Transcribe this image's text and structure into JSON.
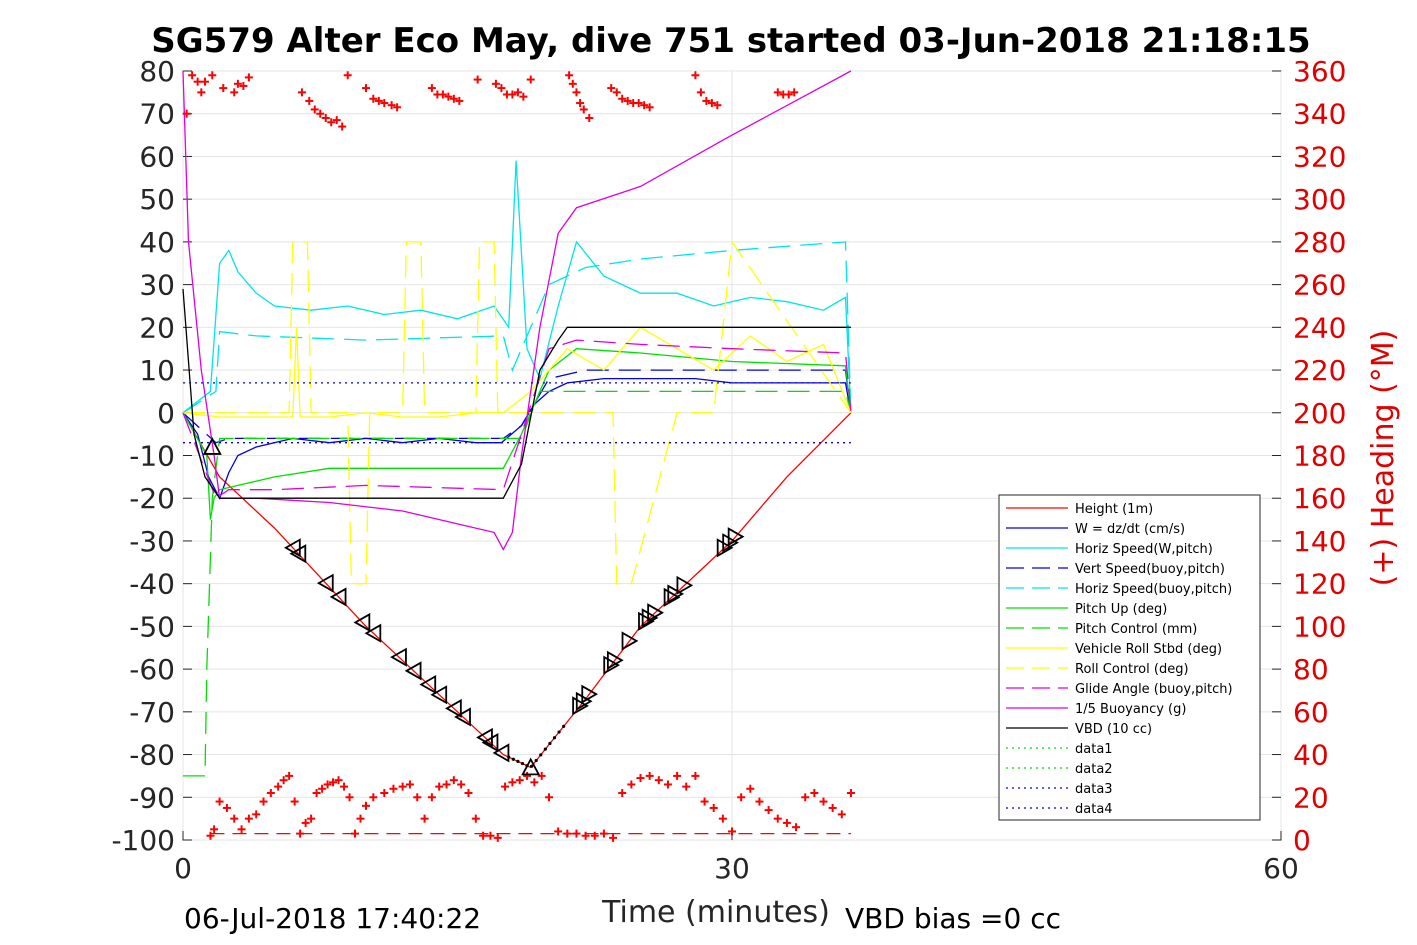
{
  "title": "SG579 Alter Eco May, dive 751 started 03-Jun-2018 21:18:15",
  "footer": {
    "date": "06-Jul-2018 17:40:22",
    "vbd_bias": "VBD bias =0 cc"
  },
  "chart_data": {
    "type": "line",
    "title": "SG579 Alter Eco May, dive 751 started 03-Jun-2018 21:18:15",
    "xlabel": "Time (minutes)",
    "ylabel": "",
    "y2label": "(+) Heading (°M)",
    "xlim": [
      0,
      60
    ],
    "ylim": [
      -100,
      80
    ],
    "y2lim": [
      0,
      360
    ],
    "xticks": [
      "0",
      "30",
      "60"
    ],
    "yticks": [
      "80",
      "70",
      "60",
      "50",
      "40",
      "30",
      "20",
      "10",
      "0",
      "-10",
      "-20",
      "-30",
      "-40",
      "-50",
      "-60",
      "-70",
      "-80",
      "-90",
      "-100"
    ],
    "y2ticks": [
      "360",
      "340",
      "320",
      "300",
      "280",
      "260",
      "240",
      "220",
      "200",
      "180",
      "160",
      "140",
      "120",
      "100",
      "80",
      "60",
      "40",
      "20",
      "0"
    ],
    "grid": true,
    "legend_position": "bottom-right",
    "colors": {
      "heading_axis": "#ff0000",
      "red": "#ff0000",
      "blue": "#0000e0",
      "cyan": "#00e5e5",
      "green": "#00e000",
      "yellow": "#ffff00",
      "magenta": "#e000e0",
      "black": "#000000"
    },
    "series": [
      {
        "name": "Height (1m)",
        "color": "#ff0000",
        "style": "solid",
        "x": [
          0,
          2,
          5,
          10,
          15,
          17.5,
          19,
          22,
          25,
          30,
          33,
          36.5
        ],
        "y": [
          0,
          -15,
          -27,
          -50,
          -70,
          -80,
          -83,
          -67,
          -50,
          -30,
          -15,
          0
        ]
      },
      {
        "name": "W = dz/dt (cm/s)",
        "color": "#0000e0",
        "style": "solid",
        "x": [
          0,
          0.8,
          1.4,
          2,
          2.5,
          3,
          4,
          6,
          8,
          10,
          12,
          14,
          16,
          17.4,
          18.5,
          19.2,
          20,
          21,
          23,
          25,
          28,
          30,
          32,
          34,
          36.2,
          36.5
        ],
        "y": [
          0,
          -5,
          -15,
          -20,
          -14,
          -10,
          -8,
          -6,
          -7,
          -6,
          -7,
          -6,
          -7,
          -7,
          -3,
          2,
          5,
          7,
          8,
          8,
          8,
          7,
          7,
          7,
          7,
          0
        ]
      },
      {
        "name": "Horiz Speed(W,pitch)",
        "color": "#00e5e5",
        "style": "solid",
        "x": [
          0,
          1.5,
          2,
          2.5,
          3,
          4,
          5,
          7,
          9,
          11,
          13,
          15,
          17,
          17.8,
          18.2,
          18.8,
          19.5,
          20.5,
          21.5,
          23,
          25,
          27,
          29,
          31,
          33,
          35,
          36.2,
          36.5
        ],
        "y": [
          0,
          5,
          35,
          38,
          33,
          28,
          25,
          24,
          25,
          23,
          24,
          22,
          25,
          20,
          59,
          15,
          8,
          25,
          40,
          32,
          28,
          28,
          25,
          27,
          26,
          24,
          27,
          0
        ]
      },
      {
        "name": "Vert Speed(buoy,pitch)",
        "color": "#0000e0",
        "style": "dashed",
        "x": [
          0,
          1.8,
          2.5,
          4,
          10,
          17.5,
          18.5,
          20,
          22,
          25,
          30,
          36.2,
          36.5
        ],
        "y": [
          0,
          -7,
          -6,
          -6,
          -6,
          -6,
          -3,
          8,
          10,
          10,
          10,
          10,
          0
        ]
      },
      {
        "name": "Horiz Speed(buoy,pitch)",
        "color": "#00e5e5",
        "style": "dashed",
        "x": [
          0,
          1.8,
          2,
          4,
          10,
          17.5,
          18,
          20,
          22,
          25,
          30,
          36.2,
          36.5
        ],
        "y": [
          0,
          5,
          19,
          18,
          17,
          18,
          10,
          30,
          34,
          36,
          38,
          40,
          0
        ]
      },
      {
        "name": "Pitch Up (deg)",
        "color": "#00e000",
        "style": "solid",
        "x": [
          0,
          1.3,
          1.5,
          1.7,
          2,
          3,
          5,
          8,
          12,
          17.5,
          18.5,
          20,
          21.5,
          25,
          30,
          36.2,
          36.5
        ],
        "y": [
          0,
          -10,
          -25,
          -20,
          -18,
          -17,
          -15,
          -13,
          -13,
          -13,
          -5,
          10,
          15,
          14,
          12,
          11,
          0
        ]
      },
      {
        "name": "Pitch Control (mm)",
        "color": "#00e000",
        "style": "dashed",
        "x": [
          0,
          1.2,
          1.3,
          1.6,
          2,
          8,
          17.5,
          18.5,
          19.5,
          25,
          36.2,
          36.5
        ],
        "y": [
          -85,
          -85,
          -60,
          -20,
          -6,
          -6,
          -6,
          -6,
          5,
          5,
          5,
          0
        ]
      },
      {
        "name": "Vehicle Roll Stbd (deg)",
        "color": "#ffff00",
        "style": "solid",
        "x": [
          0,
          2,
          4,
          6,
          6.2,
          6.4,
          8,
          10,
          12,
          14,
          16,
          17.5,
          19,
          21,
          23,
          25,
          27,
          29,
          31,
          33,
          35,
          36.5
        ],
        "y": [
          0,
          -1,
          -1,
          -1,
          20,
          -1,
          -1,
          0,
          -1,
          -1,
          0,
          0,
          5,
          15,
          10,
          20,
          15,
          10,
          18,
          12,
          16,
          0
        ]
      },
      {
        "name": "Roll Control (deg)",
        "color": "#ffff00",
        "style": "dashed",
        "x": [
          0,
          2,
          5.8,
          6,
          6.8,
          7,
          9,
          9.2,
          10,
          10.2,
          12,
          12.2,
          13,
          13.2,
          16,
          16.2,
          17,
          17.2,
          19,
          22,
          23.5,
          23.7,
          24.5,
          27,
          29,
          30,
          36.5
        ],
        "y": [
          0,
          0,
          0,
          40,
          40,
          0,
          0,
          -40,
          -40,
          0,
          0,
          40,
          40,
          0,
          0,
          40,
          40,
          0,
          0,
          0,
          0,
          -40,
          -40,
          0,
          0,
          40,
          0
        ]
      },
      {
        "name": "Glide Angle (buoy,pitch)",
        "color": "#e000e0",
        "style": "dashed",
        "x": [
          0,
          1.8,
          2.5,
          5,
          10,
          17.5,
          18.5,
          20,
          21.5,
          25,
          30,
          36.2,
          36.5
        ],
        "y": [
          0,
          -20,
          -18,
          -18,
          -17,
          -18,
          -5,
          15,
          17,
          16,
          15,
          14,
          0
        ]
      },
      {
        "name": "1/5 Buoyancy (g)",
        "color": "#e000e0",
        "style": "solid",
        "x": [
          0,
          0.3,
          1,
          1.7,
          2,
          4,
          8,
          12,
          15,
          17,
          17.5,
          18,
          18.5,
          19.5,
          20.5,
          21.5,
          25,
          30,
          36.5
        ],
        "y": [
          80,
          40,
          10,
          -10,
          -20,
          -20,
          -21,
          -23,
          -26,
          -28,
          -32,
          -28,
          -10,
          20,
          42,
          48,
          53,
          65,
          80
        ]
      },
      {
        "name": "VBD (10 cc)",
        "color": "#000000",
        "style": "solid",
        "x": [
          0,
          0.6,
          1.2,
          2,
          5,
          10,
          15,
          17.5,
          18.5,
          19.5,
          20.5,
          21,
          25,
          30,
          36.5
        ],
        "y": [
          29,
          -5,
          -15,
          -20,
          -20,
          -20,
          -20,
          -20,
          -12,
          10,
          17,
          20,
          20,
          20,
          20
        ]
      },
      {
        "name": "data1",
        "color": "#00e000",
        "style": "dotted",
        "x": [],
        "y": []
      },
      {
        "name": "data2",
        "color": "#00e000",
        "style": "dotted",
        "x": [],
        "y": []
      },
      {
        "name": "data3",
        "color": "#0000e0",
        "style": "dotted",
        "x": [
          0,
          36.5
        ],
        "y": [
          7,
          7
        ]
      },
      {
        "name": "data4",
        "color": "#0000e0",
        "style": "dotted",
        "x": [
          0,
          36.5
        ],
        "y": [
          -7,
          -7
        ]
      }
    ],
    "heading_points": {
      "axis": "right",
      "color": "#ff0000",
      "x": [
        0.2,
        0.5,
        0.8,
        1.0,
        1.2,
        1.6,
        2.2,
        2.8,
        3.0,
        3.3,
        3.6,
        6.5,
        6.9,
        7.2,
        7.5,
        7.8,
        8.1,
        8.4,
        8.7,
        9.0,
        10.0,
        10.4,
        10.7,
        11.0,
        11.4,
        11.7,
        13.6,
        13.9,
        14.2,
        14.5,
        14.8,
        15.1,
        16.1,
        17.1,
        17.4,
        17.7,
        18.0,
        18.3,
        18.6,
        19.0,
        21.1,
        21.3,
        21.5,
        21.7,
        21.9,
        22.2,
        23.4,
        23.7,
        24.0,
        24.3,
        24.6,
        24.9,
        25.2,
        25.5,
        28.0,
        28.3,
        28.6,
        28.9,
        29.2,
        32.5,
        32.8,
        33.1,
        33.4
      ],
      "y": [
        340,
        358,
        355,
        350,
        355,
        358,
        352,
        350,
        354,
        353,
        357,
        350,
        346,
        342,
        340,
        338,
        336,
        337,
        334,
        358,
        352,
        347,
        346,
        345,
        344,
        343,
        352,
        349,
        349,
        348,
        347,
        346,
        356,
        354,
        352,
        349,
        349,
        350,
        348,
        356,
        358,
        354,
        350,
        345,
        342,
        338,
        352,
        350,
        347,
        346,
        345,
        345,
        344,
        343,
        358,
        350,
        346,
        345,
        344,
        350,
        349,
        349,
        350
      ],
      "x_low": [
        1.5,
        1.7,
        2.0,
        2.4,
        2.8,
        3.2,
        3.6,
        4.0,
        4.4,
        4.8,
        5.2,
        5.5,
        5.8,
        6.1,
        6.4,
        6.7,
        7.0,
        7.3,
        7.6,
        7.9,
        8.2,
        8.5,
        8.8,
        9.1,
        9.4,
        9.7,
        10.0,
        10.4,
        11.0,
        11.5,
        12.0,
        12.4,
        12.8,
        13.2,
        13.6,
        14.0,
        14.4,
        14.8,
        15.2,
        15.6,
        16.0,
        16.4,
        16.8,
        17.2,
        17.6,
        18.0,
        18.4,
        18.8,
        19.2,
        19.6,
        20.0,
        20.5,
        21.0,
        21.5,
        22.0,
        22.5,
        23.0,
        23.5,
        24.0,
        24.5,
        25.0,
        25.5,
        26.0,
        26.5,
        27.0,
        27.5,
        28.0,
        28.5,
        29.0,
        29.5,
        30.0,
        30.5,
        31.0,
        31.5,
        32.0,
        32.5,
        33.0,
        33.5,
        34.0,
        34.5,
        35.0,
        35.5,
        36.0,
        36.5
      ],
      "y_low": [
        2,
        5,
        18,
        15,
        10,
        5,
        10,
        12,
        18,
        22,
        25,
        28,
        30,
        18,
        3,
        8,
        10,
        22,
        24,
        26,
        27,
        28,
        25,
        20,
        3,
        10,
        16,
        20,
        22,
        24,
        25,
        26,
        20,
        10,
        20,
        25,
        26,
        28,
        26,
        22,
        10,
        2,
        2,
        1,
        25,
        27,
        28,
        30,
        27,
        30,
        20,
        4,
        3,
        3,
        2,
        2,
        3,
        1,
        22,
        26,
        29,
        30,
        28,
        26,
        30,
        25,
        30,
        18,
        15,
        10,
        4,
        20,
        24,
        18,
        14,
        10,
        8,
        6,
        20,
        22,
        18,
        15,
        12,
        22
      ]
    }
  }
}
